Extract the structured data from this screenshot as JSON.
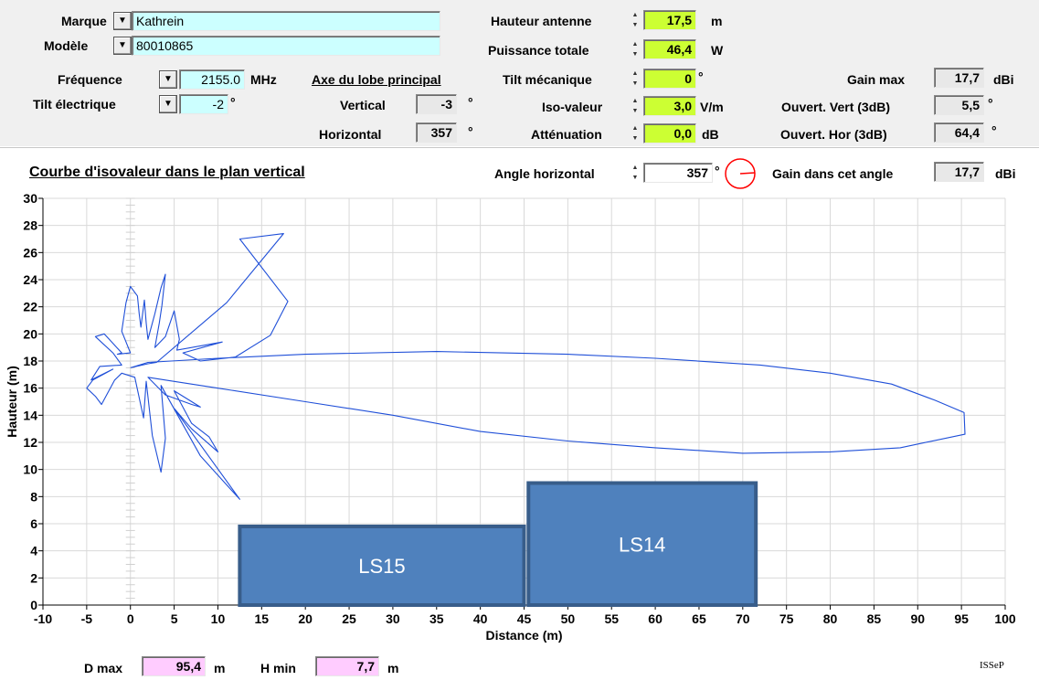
{
  "form": {
    "marque_label": "Marque",
    "marque_value": "Kathrein",
    "modele_label": "Modèle",
    "modele_value": "80010865",
    "frequence_label": "Fréquence",
    "frequence_value": "2155.0",
    "frequence_unit": "MHz",
    "tilt_elec_label": "Tilt électrique",
    "tilt_elec_value": "-2",
    "tilt_elec_unit": "°",
    "axe_title": "Axe du lobe principal",
    "vertical_label": "Vertical",
    "vertical_value": "-3",
    "vertical_unit": "°",
    "horizontal_label": "Horizontal",
    "horizontal_value": "357",
    "horizontal_unit": "°",
    "hauteur_label": "Hauteur antenne",
    "hauteur_value": "17,5",
    "hauteur_unit": "m",
    "puissance_label": "Puissance totale",
    "puissance_value": "46,4",
    "puissance_unit": "W",
    "tilt_meca_label": "Tilt mécanique",
    "tilt_meca_value": "0",
    "tilt_meca_unit": "°",
    "iso_label": "Iso-valeur",
    "iso_value": "3,0",
    "iso_unit": "V/m",
    "att_label": "Atténuation",
    "att_value": "0,0",
    "att_unit": "dB",
    "gain_max_label": "Gain max",
    "gain_max_value": "17,7",
    "gain_max_unit": "dBi",
    "ouv_vert_label": "Ouvert. Vert (3dB)",
    "ouv_vert_value": "5,5",
    "ouv_vert_unit": "°",
    "ouv_hor_label": "Ouvert. Hor (3dB)",
    "ouv_hor_value": "64,4",
    "ouv_hor_unit": "°"
  },
  "plot_header": {
    "title": "Courbe d'isovaleur dans le plan vertical",
    "angle_label": "Angle horizontal",
    "angle_value": "357",
    "angle_unit": "°",
    "gain_angle_label": "Gain dans cet angle",
    "gain_angle_value": "17,7",
    "gain_angle_unit": "dBi"
  },
  "footer": {
    "dmax_label": "D max",
    "dmax_value": "95,4",
    "dmax_unit": "m",
    "hmin_label": "H min",
    "hmin_value": "7,7",
    "hmin_unit": "m",
    "brand": "ISSeP"
  },
  "colors": {
    "curve": "#1f4fd8",
    "building_fill": "#4f81bd",
    "building_border": "#385d8a",
    "green": "#ccff33",
    "cyan": "#ccffff",
    "pink": "#ffccff",
    "compass": "#ff0000"
  },
  "chart_data": {
    "type": "line",
    "xlabel": "Distance (m)",
    "ylabel": "Hauteur (m)",
    "xlim": [
      -10,
      100
    ],
    "ylim": [
      0,
      30
    ],
    "xticks": [
      -10,
      -5,
      0,
      5,
      10,
      15,
      20,
      25,
      30,
      35,
      40,
      45,
      50,
      55,
      60,
      65,
      70,
      75,
      80,
      85,
      90,
      95,
      100
    ],
    "yticks": [
      0,
      2,
      4,
      6,
      8,
      10,
      12,
      14,
      16,
      18,
      20,
      22,
      24,
      26,
      28,
      30
    ],
    "grid": true,
    "series": [
      {
        "points": [
          [
            0,
            17.5
          ],
          [
            2,
            17.9
          ],
          [
            10,
            18.2
          ],
          [
            20,
            18.5
          ],
          [
            35,
            18.7
          ],
          [
            50,
            18.5
          ],
          [
            60,
            18.2
          ],
          [
            72,
            17.7
          ],
          [
            80,
            17.1
          ],
          [
            87,
            16.3
          ],
          [
            92,
            15.1
          ],
          [
            95.3,
            14.2
          ],
          [
            95.4,
            12.6
          ],
          [
            88,
            11.6
          ],
          [
            80,
            11.3
          ],
          [
            70,
            11.2
          ],
          [
            60,
            11.6
          ],
          [
            50,
            12.1
          ],
          [
            40,
            12.8
          ],
          [
            30,
            14.0
          ],
          [
            20,
            15.0
          ],
          [
            10,
            16.0
          ],
          [
            4,
            16.6
          ],
          [
            2,
            16.8
          ],
          [
            4,
            15.5
          ],
          [
            7,
            14.8
          ],
          [
            8,
            14.6
          ],
          [
            5,
            15.8
          ],
          [
            7,
            13.4
          ],
          [
            9,
            12.4
          ],
          [
            10,
            11.3
          ],
          [
            7,
            13.0
          ],
          [
            5,
            14.5
          ],
          [
            12.5,
            7.8
          ],
          [
            8,
            11.0
          ],
          [
            3.5,
            16.2
          ],
          [
            4,
            12.3
          ],
          [
            3.5,
            9.8
          ],
          [
            2.5,
            12.5
          ],
          [
            1.8,
            16.5
          ],
          [
            1.5,
            13.8
          ],
          [
            0.5,
            16.8
          ],
          [
            -1,
            17.1
          ],
          [
            -1.8,
            16.6
          ],
          [
            -3.3,
            14.8
          ],
          [
            -4,
            15.4
          ],
          [
            -5,
            16.0
          ],
          [
            -4.3,
            16.6
          ],
          [
            -2,
            17.4
          ],
          [
            -4.5,
            16.6
          ],
          [
            -3.5,
            17.6
          ],
          [
            -1,
            17.7
          ],
          [
            -2,
            18.6
          ],
          [
            -4,
            19.8
          ],
          [
            -3,
            20.0
          ],
          [
            -1,
            18.6
          ],
          [
            -1.5,
            18.5
          ],
          [
            0,
            18.6
          ],
          [
            -1,
            20.2
          ],
          [
            -0.5,
            22.3
          ],
          [
            0,
            23.5
          ],
          [
            0.8,
            22.8
          ],
          [
            1,
            21.5
          ],
          [
            1.2,
            20.5
          ],
          [
            1.6,
            22.5
          ],
          [
            1.8,
            20.8
          ],
          [
            2,
            19.6
          ],
          [
            2.8,
            21.5
          ],
          [
            3.5,
            23.4
          ],
          [
            4,
            24.4
          ],
          [
            3.6,
            22.1
          ],
          [
            3.3,
            20.8
          ],
          [
            2.8,
            19.0
          ],
          [
            4,
            19.8
          ],
          [
            5,
            21.7
          ],
          [
            5.6,
            19.6
          ],
          [
            5.3,
            18.8
          ],
          [
            10.5,
            19.4
          ],
          [
            6,
            18.6
          ],
          [
            8,
            18.0
          ],
          [
            12,
            18.3
          ],
          [
            16,
            19.9
          ],
          [
            18,
            22.4
          ],
          [
            12.5,
            27.0
          ],
          [
            17.5,
            27.4
          ],
          [
            11,
            22.3
          ],
          [
            3,
            17.9
          ],
          [
            2,
            17.8
          ],
          [
            0,
            17.5
          ]
        ]
      }
    ],
    "buildings": [
      {
        "label": "LS15",
        "x": [
          12.5,
          45
        ],
        "height": 5.8
      },
      {
        "label": "LS14",
        "x": [
          45.5,
          71.5
        ],
        "height": 9.0
      }
    ]
  }
}
